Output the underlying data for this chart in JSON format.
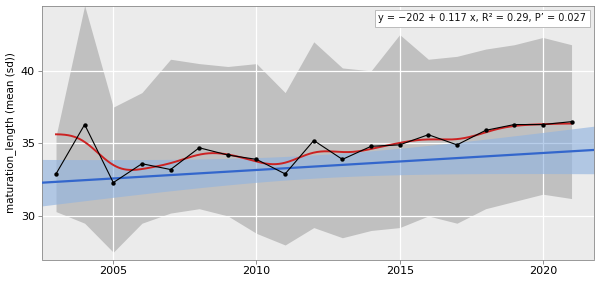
{
  "years": [
    2003,
    2004,
    2005,
    2006,
    2007,
    2008,
    2009,
    2010,
    2011,
    2012,
    2013,
    2014,
    2015,
    2016,
    2017,
    2018,
    2019,
    2020,
    2021
  ],
  "mean_values": [
    32.9,
    36.3,
    32.3,
    33.6,
    33.2,
    34.7,
    34.2,
    33.9,
    32.9,
    35.2,
    33.9,
    34.8,
    34.9,
    35.6,
    34.9,
    35.9,
    36.3,
    36.3,
    36.5
  ],
  "sd_upper": [
    35.5,
    44.5,
    37.5,
    38.5,
    40.8,
    40.5,
    40.3,
    40.5,
    38.5,
    42.0,
    40.2,
    40.0,
    42.5,
    40.8,
    41.0,
    41.5,
    41.8,
    42.3,
    41.8
  ],
  "sd_lower": [
    30.3,
    29.5,
    27.5,
    29.5,
    30.2,
    30.5,
    30.0,
    28.8,
    28.0,
    29.2,
    28.5,
    29.0,
    29.2,
    30.0,
    29.5,
    30.5,
    31.0,
    31.5,
    31.2
  ],
  "reg_slope": 0.117,
  "reg_intercept": -202,
  "r2": 0.29,
  "pval": 0.027,
  "xlim": [
    2002.5,
    2021.8
  ],
  "ylim": [
    27.0,
    44.5
  ],
  "yticks": [
    30,
    35,
    40
  ],
  "xticks": [
    2005,
    2010,
    2015,
    2020
  ],
  "ylabel": "maturation_length (mean (sd))",
  "annotation": "y = −202 + 0.117 x, R² = 0.29, P’ = 0.027",
  "line_color": "#000000",
  "dot_color": "#000000",
  "sd_fill_color": "#c0c0c0",
  "reg_line_color": "#3366cc",
  "reg_ci_color": "#92b4e0",
  "loess_color": "#cc2222",
  "bg_color": "#ffffff",
  "panel_bg": "#ebebeb",
  "grid_color": "#ffffff"
}
